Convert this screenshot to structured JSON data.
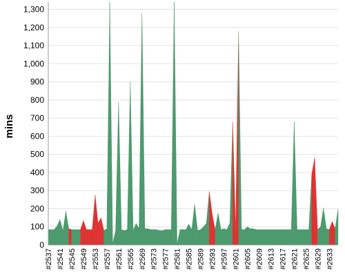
{
  "chart_data": {
    "type": "area",
    "title": "",
    "ylabel": "mins",
    "xlabel": "",
    "ylim": [
      0,
      1340
    ],
    "yticks": [
      0,
      100,
      200,
      300,
      400,
      500,
      600,
      700,
      800,
      900,
      1000,
      1100,
      1200,
      1300
    ],
    "ytick_labels": [
      "0",
      "100",
      "200",
      "300",
      "400",
      "500",
      "600",
      "700",
      "800",
      "900",
      "1,000",
      "1,100",
      "1,200",
      "1,300"
    ],
    "x_tick_labels": [
      "#2537",
      "#2541",
      "#2545",
      "#2549",
      "#2553",
      "#2557",
      "#2561",
      "#2565",
      "#2569",
      "#2573",
      "#2577",
      "#2581",
      "#2585",
      "#2589",
      "#2593",
      "#2597",
      "#2601",
      "#2605",
      "#2609",
      "#2613",
      "#2617",
      "#2621",
      "#2625",
      "#2629",
      "#2633"
    ],
    "grid": true,
    "colors": {
      "success": "#4c9a6e",
      "failure": "#dd3333",
      "grid": "#e2e2e2",
      "axis": "#999999"
    },
    "status_legend": {
      "S": "green",
      "F": "red"
    },
    "builds": [
      2537,
      2538,
      2539,
      2540,
      2541,
      2542,
      2543,
      2544,
      2545,
      2546,
      2547,
      2548,
      2549,
      2550,
      2551,
      2552,
      2553,
      2554,
      2555,
      2556,
      2557,
      2558,
      2559,
      2560,
      2561,
      2562,
      2563,
      2564,
      2565,
      2566,
      2567,
      2568,
      2569,
      2570,
      2571,
      2572,
      2573,
      2574,
      2575,
      2576,
      2577,
      2578,
      2579,
      2580,
      2581,
      2582,
      2583,
      2584,
      2585,
      2586,
      2587,
      2588,
      2589,
      2590,
      2591,
      2592,
      2593,
      2594,
      2595,
      2596,
      2597,
      2598,
      2599,
      2600,
      2601,
      2602,
      2603,
      2604,
      2605,
      2606,
      2607,
      2608,
      2609,
      2610,
      2611,
      2612,
      2613,
      2614,
      2615,
      2616,
      2617,
      2618,
      2619,
      2620,
      2621,
      2622,
      2623,
      2624,
      2625,
      2626,
      2627,
      2628,
      2629,
      2630,
      2631,
      2632,
      2633,
      2634,
      2635,
      2636
    ],
    "values": [
      85,
      85,
      85,
      105,
      140,
      80,
      185,
      90,
      85,
      85,
      85,
      85,
      135,
      85,
      85,
      85,
      275,
      120,
      150,
      80,
      90,
      1380,
      10,
      80,
      790,
      85,
      80,
      85,
      900,
      80,
      120,
      90,
      1280,
      90,
      90,
      85,
      85,
      85,
      80,
      80,
      85,
      85,
      85,
      1380,
      5,
      85,
      85,
      85,
      115,
      85,
      225,
      80,
      85,
      100,
      120,
      295,
      170,
      85,
      175,
      85,
      90,
      85,
      120,
      680,
      85,
      1180,
      85,
      85,
      100,
      90,
      90,
      85,
      85,
      85,
      85,
      85,
      85,
      85,
      85,
      85,
      85,
      85,
      85,
      85,
      680,
      85,
      85,
      85,
      85,
      85,
      390,
      480,
      85,
      100,
      205,
      90,
      85,
      130,
      90,
      200
    ],
    "status": [
      "S",
      "S",
      "S",
      "S",
      "S",
      "S",
      "S",
      "F",
      "S",
      "S",
      "S",
      "F",
      "F",
      "F",
      "F",
      "F",
      "F",
      "F",
      "F",
      "S",
      "S",
      "S",
      "S",
      "S",
      "S",
      "S",
      "S",
      "S",
      "S",
      "S",
      "S",
      "S",
      "S",
      "S",
      "S",
      "S",
      "S",
      "S",
      "S",
      "S",
      "S",
      "S",
      "S",
      "S",
      "S",
      "S",
      "S",
      "S",
      "S",
      "S",
      "S",
      "S",
      "S",
      "S",
      "S",
      "F",
      "F",
      "S",
      "S",
      "S",
      "S",
      "S",
      "S",
      "F",
      "F",
      "S",
      "S",
      "S",
      "S",
      "S",
      "S",
      "S",
      "S",
      "S",
      "S",
      "S",
      "S",
      "S",
      "S",
      "S",
      "S",
      "S",
      "S",
      "S",
      "S",
      "S",
      "S",
      "S",
      "S",
      "S",
      "F",
      "F",
      "S",
      "S",
      "S",
      "S",
      "F",
      "F",
      "S",
      "S"
    ]
  }
}
